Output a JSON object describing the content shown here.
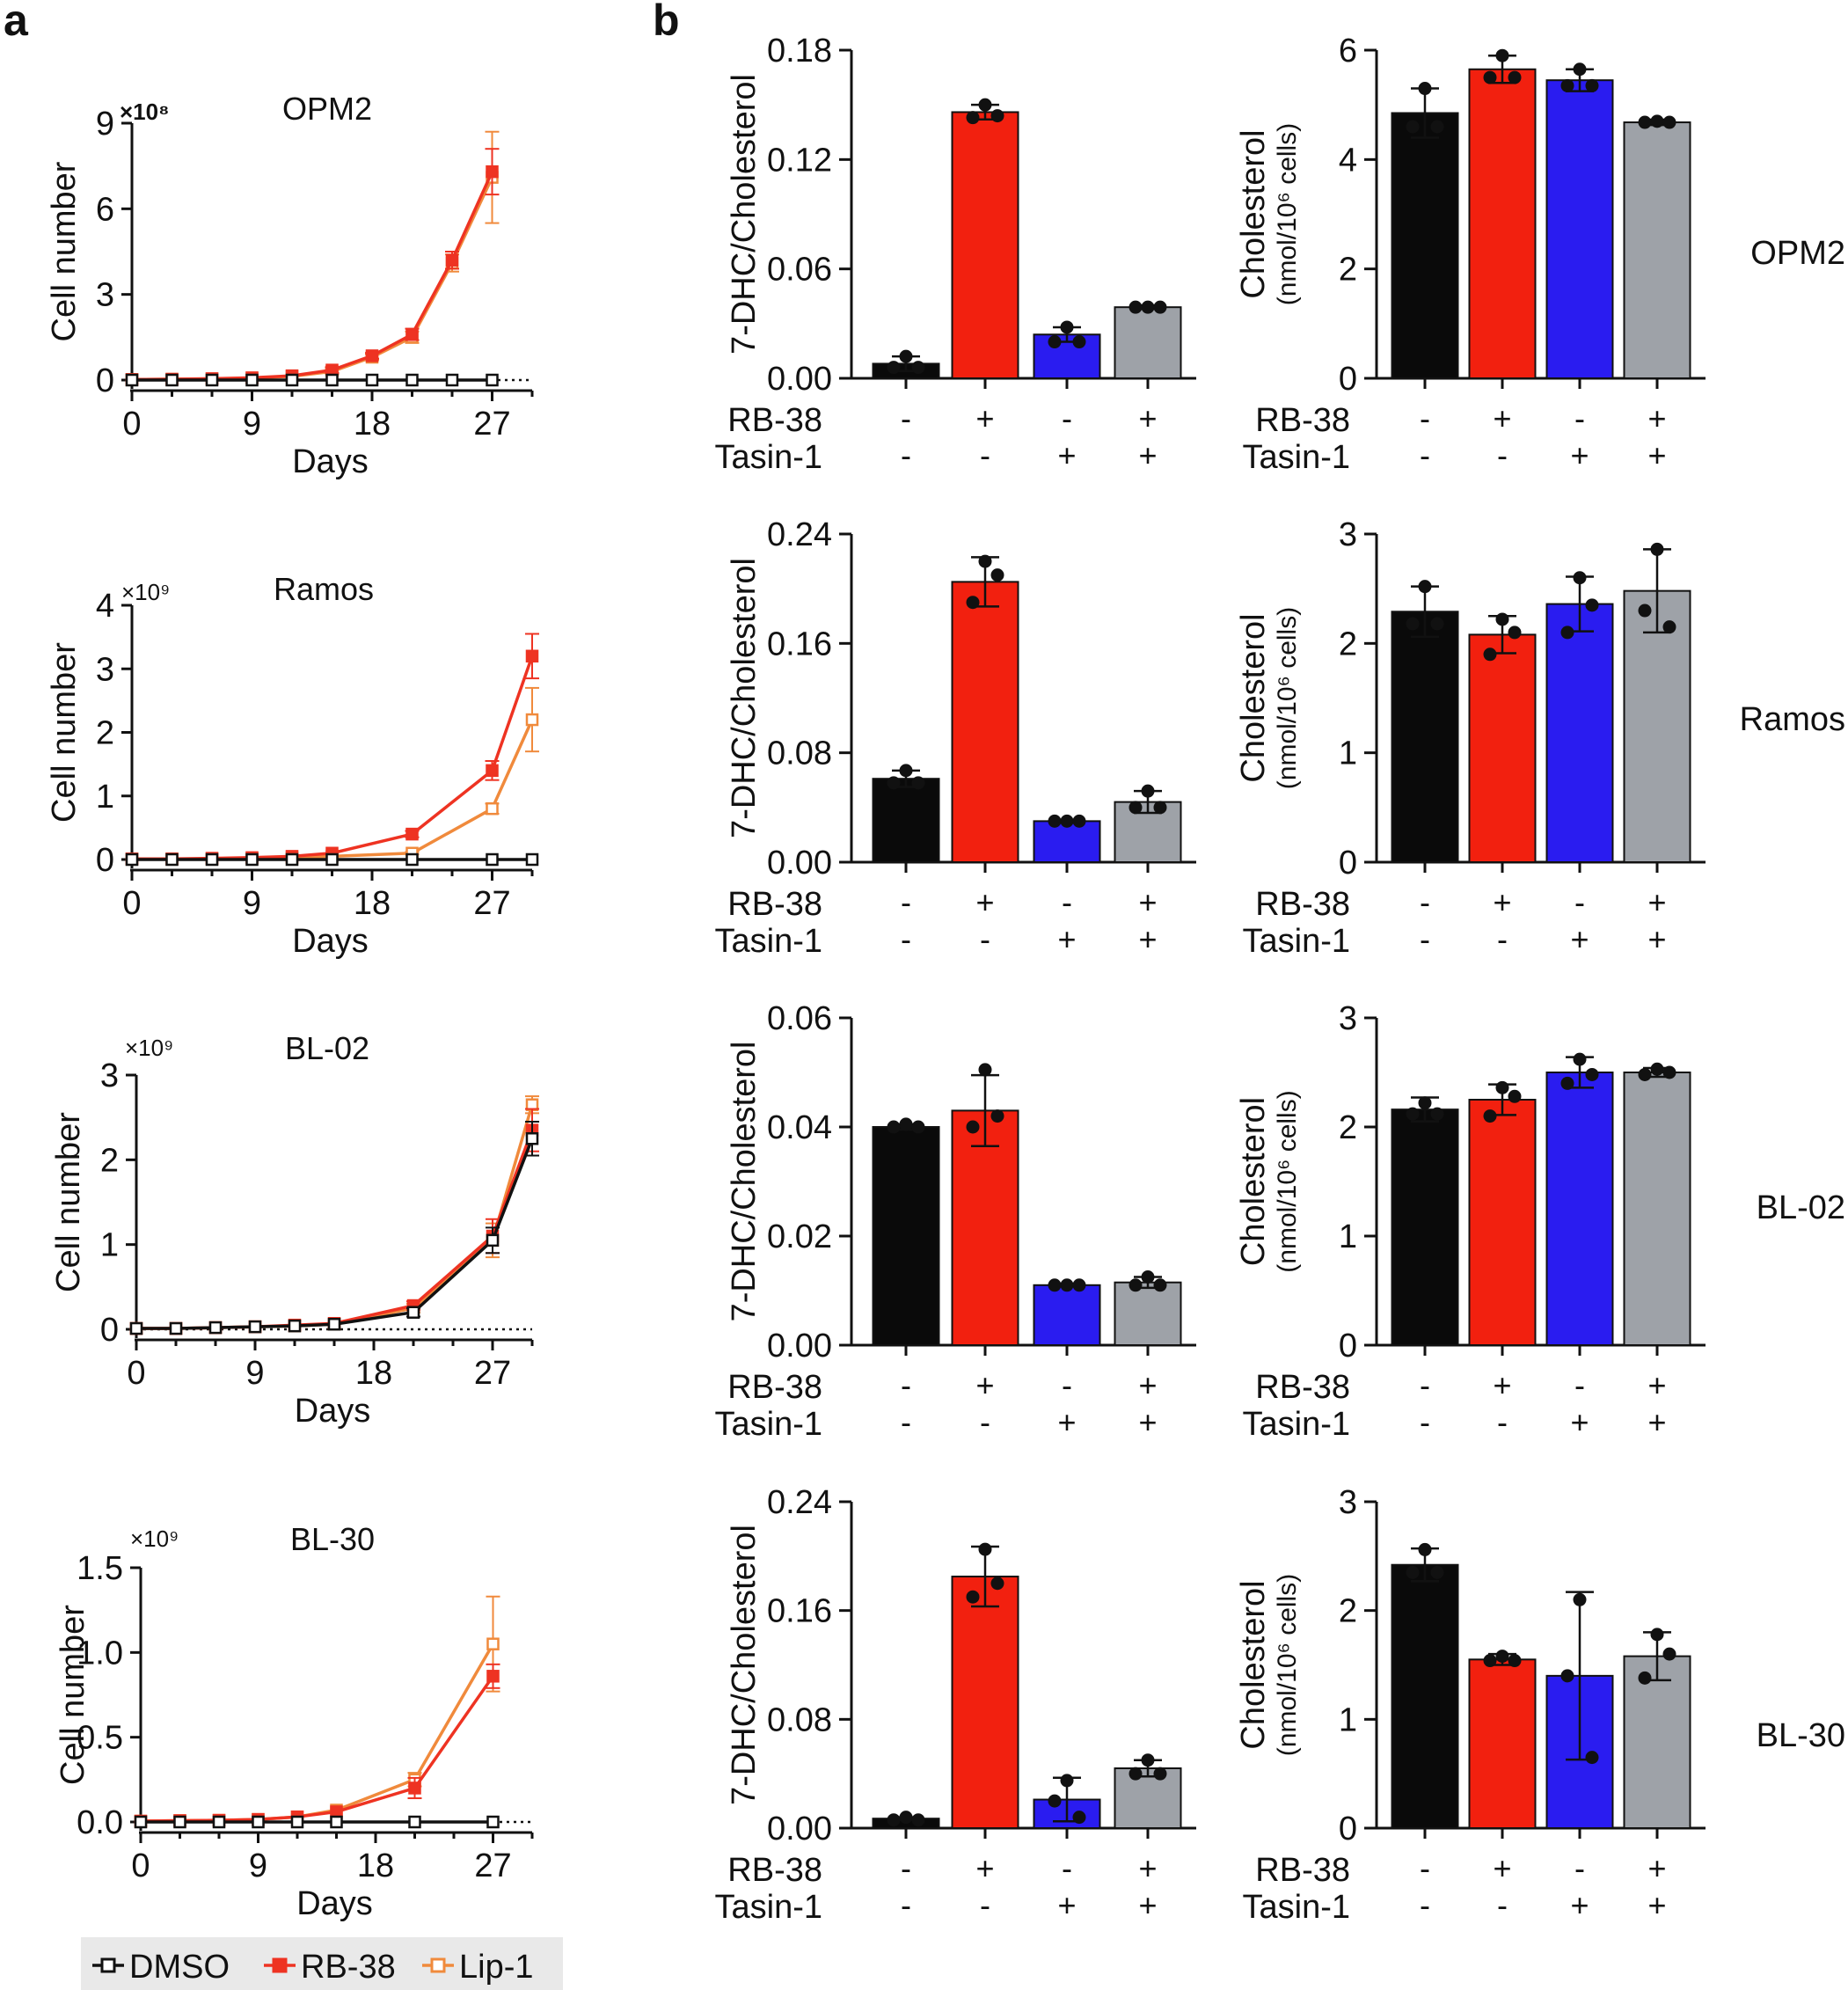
{
  "panel_labels": {
    "a": "a",
    "b": "b"
  },
  "colors": {
    "dmso": "#111111",
    "rb38": "#ee3322",
    "lip1": "#f08a3c",
    "bar_black": "#0a0a0a",
    "bar_red": "#f2200f",
    "bar_blue": "#2a1cf0",
    "bar_gray": "#9ea2a8"
  },
  "treatment_labels": {
    "rb38": "RB-38",
    "tasin1": "Tasin-1"
  },
  "treatment_signs": {
    "rb38": [
      "-",
      "+",
      "-",
      "+"
    ],
    "tasin1": [
      "-",
      "-",
      "+",
      "+"
    ]
  },
  "legend": {
    "items": [
      "DMSO",
      "RB-38",
      "Lip-1"
    ]
  },
  "chart_data": [
    {
      "type": "line",
      "title": "OPM2",
      "exponent": "×10⁸",
      "xlabel": "Days",
      "ylabel": "Cell number",
      "xticks": [
        0,
        9,
        18,
        27
      ],
      "xlim": [
        0,
        30
      ],
      "yticks": [
        0,
        3,
        6,
        9
      ],
      "ylim": [
        0,
        9
      ],
      "yticklabels": [
        "0",
        "3",
        "6",
        "9"
      ],
      "series": [
        {
          "name": "DMSO",
          "x": [
            0,
            3,
            6,
            9,
            12,
            15,
            18,
            21,
            24,
            27
          ],
          "values": [
            0,
            0,
            0,
            0,
            0,
            0,
            0,
            0,
            0,
            0
          ],
          "err": [
            0,
            0,
            0,
            0,
            0,
            0,
            0,
            0,
            0,
            0
          ]
        },
        {
          "name": "RB-38",
          "x": [
            0,
            3,
            6,
            9,
            12,
            15,
            18,
            21,
            24,
            27
          ],
          "values": [
            0.02,
            0.03,
            0.05,
            0.08,
            0.15,
            0.35,
            0.85,
            1.6,
            4.2,
            7.3
          ],
          "err": [
            0,
            0,
            0,
            0,
            0,
            0.1,
            0.1,
            0.2,
            0.3,
            0.8
          ]
        },
        {
          "name": "Lip-1",
          "x": [
            0,
            3,
            6,
            9,
            12,
            15,
            18,
            21,
            24,
            27
          ],
          "values": [
            0.02,
            0.03,
            0.04,
            0.07,
            0.13,
            0.3,
            0.8,
            1.5,
            4.1,
            7.1
          ],
          "err": [
            0,
            0,
            0,
            0,
            0,
            0.1,
            0.1,
            0.2,
            0.3,
            1.6
          ]
        }
      ]
    },
    {
      "type": "line",
      "title": "Ramos",
      "exponent": "×10⁹",
      "xlabel": "Days",
      "ylabel": "Cell number",
      "xticks": [
        0,
        9,
        18,
        27
      ],
      "xlim": [
        0,
        30
      ],
      "yticks": [
        0,
        1,
        2,
        3,
        4
      ],
      "ylim": [
        0,
        4
      ],
      "yticklabels": [
        "0",
        "1",
        "2",
        "3",
        "4"
      ],
      "series": [
        {
          "name": "DMSO",
          "x": [
            0,
            3,
            6,
            9,
            12,
            15,
            21,
            27,
            30
          ],
          "values": [
            0,
            0,
            0,
            0,
            0,
            0,
            0,
            0,
            0
          ],
          "err": [
            0,
            0,
            0,
            0,
            0,
            0,
            0,
            0,
            0
          ]
        },
        {
          "name": "RB-38",
          "x": [
            0,
            3,
            6,
            9,
            12,
            15,
            21,
            27,
            30
          ],
          "values": [
            0.01,
            0.01,
            0.02,
            0.03,
            0.05,
            0.1,
            0.4,
            1.4,
            3.2
          ],
          "err": [
            0,
            0,
            0,
            0,
            0,
            0,
            0.05,
            0.15,
            0.35
          ]
        },
        {
          "name": "Lip-1",
          "x": [
            0,
            3,
            6,
            9,
            12,
            15,
            21,
            27,
            30
          ],
          "values": [
            0.01,
            0.01,
            0.01,
            0.02,
            0.03,
            0.05,
            0.1,
            0.8,
            2.2
          ],
          "err": [
            0,
            0,
            0,
            0,
            0,
            0,
            0.02,
            0.08,
            0.5
          ]
        }
      ]
    },
    {
      "type": "line",
      "title": "BL-02",
      "exponent": "×10⁹",
      "xlabel": "Days",
      "ylabel": "Cell number",
      "xticks": [
        0,
        9,
        18,
        27
      ],
      "xlim": [
        0,
        30
      ],
      "yticks": [
        0,
        1,
        2,
        3
      ],
      "ylim": [
        0,
        3
      ],
      "yticklabels": [
        "0",
        "1",
        "2",
        "3"
      ],
      "series": [
        {
          "name": "DMSO",
          "x": [
            0,
            3,
            6,
            9,
            12,
            15,
            21,
            27,
            30
          ],
          "values": [
            0.01,
            0.01,
            0.02,
            0.03,
            0.04,
            0.06,
            0.2,
            1.05,
            2.25
          ],
          "err": [
            0,
            0,
            0,
            0,
            0,
            0,
            0.05,
            0.15,
            0.2
          ]
        },
        {
          "name": "RB-38",
          "x": [
            0,
            3,
            6,
            9,
            12,
            15,
            21,
            27,
            30
          ],
          "values": [
            0.01,
            0.01,
            0.02,
            0.03,
            0.05,
            0.07,
            0.28,
            1.1,
            2.35
          ],
          "err": [
            0,
            0,
            0,
            0,
            0,
            0,
            0.05,
            0.2,
            0.25
          ]
        },
        {
          "name": "Lip-1",
          "x": [
            0,
            3,
            6,
            9,
            12,
            15,
            21,
            27,
            30
          ],
          "values": [
            0.01,
            0.01,
            0.02,
            0.03,
            0.04,
            0.06,
            0.25,
            1.05,
            2.65
          ],
          "err": [
            0,
            0,
            0,
            0,
            0,
            0,
            0.05,
            0.2,
            0.1
          ]
        }
      ]
    },
    {
      "type": "line",
      "title": "BL-30",
      "exponent": "×10⁹",
      "xlabel": "Days",
      "ylabel": "Cell number",
      "xticks": [
        0,
        9,
        18,
        27
      ],
      "xlim": [
        0,
        30
      ],
      "yticks": [
        0,
        0.5,
        1.0,
        1.5
      ],
      "ylim": [
        0,
        1.5
      ],
      "yticklabels": [
        "0.0",
        "0.5",
        "1.0",
        "1.5"
      ],
      "series": [
        {
          "name": "DMSO",
          "x": [
            0,
            3,
            6,
            9,
            12,
            15,
            21,
            27
          ],
          "values": [
            0,
            0,
            0,
            0,
            0,
            0,
            0,
            0
          ],
          "err": [
            0,
            0,
            0,
            0,
            0,
            0,
            0,
            0
          ]
        },
        {
          "name": "RB-38",
          "x": [
            0,
            3,
            6,
            9,
            12,
            15,
            21,
            27
          ],
          "values": [
            0.005,
            0.008,
            0.01,
            0.015,
            0.03,
            0.06,
            0.2,
            0.86
          ],
          "err": [
            0,
            0,
            0,
            0,
            0,
            0,
            0.06,
            0.07
          ]
        },
        {
          "name": "Lip-1",
          "x": [
            0,
            3,
            6,
            9,
            12,
            15,
            21,
            27
          ],
          "values": [
            0.005,
            0.008,
            0.01,
            0.015,
            0.03,
            0.07,
            0.25,
            1.05
          ],
          "err": [
            0,
            0,
            0,
            0,
            0,
            0,
            0.04,
            0.28
          ]
        }
      ]
    },
    {
      "type": "bar",
      "title": "",
      "row_label": "",
      "ylabel": "7-DHC/Cholesterol",
      "ylabel2": "",
      "categories": [
        "DMSO",
        "RB-38",
        "Tasin-1",
        "RB-38 + Tasin-1"
      ],
      "ylim": [
        0,
        0.18
      ],
      "yticks": [
        0,
        0.06,
        0.12,
        0.18
      ],
      "yticklabels": [
        "0.00",
        "0.06",
        "0.12",
        "0.18"
      ],
      "values": [
        0.008,
        0.146,
        0.024,
        0.039
      ],
      "err": [
        0.004,
        0.004,
        0.004,
        0.001
      ],
      "points": [
        [
          0.012,
          0.006,
          0.006
        ],
        [
          0.15,
          0.143,
          0.144
        ],
        [
          0.028,
          0.02,
          0.02
        ],
        [
          0.039,
          0.039,
          0.039
        ]
      ]
    },
    {
      "type": "bar",
      "title": "",
      "row_label": "OPM2",
      "ylabel": "Cholesterol",
      "ylabel2": "(nmol/10⁶ cells)",
      "categories": [
        "DMSO",
        "RB-38",
        "Tasin-1",
        "RB-38 + Tasin-1"
      ],
      "ylim": [
        0,
        6
      ],
      "yticks": [
        0,
        2,
        4,
        6
      ],
      "yticklabels": [
        "0",
        "2",
        "4",
        "6"
      ],
      "values": [
        4.85,
        5.65,
        5.45,
        4.68
      ],
      "err": [
        0.45,
        0.25,
        0.2,
        0.05
      ],
      "points": [
        [
          5.3,
          4.6,
          4.6
        ],
        [
          5.9,
          5.5,
          5.5
        ],
        [
          5.65,
          5.35,
          5.35
        ],
        [
          4.7,
          4.68,
          4.68
        ]
      ]
    },
    {
      "type": "bar",
      "title": "",
      "row_label": "",
      "ylabel": "7-DHC/Cholesterol",
      "ylabel2": "",
      "categories": [
        "DMSO",
        "RB-38",
        "Tasin-1",
        "RB-38 + Tasin-1"
      ],
      "ylim": [
        0,
        0.24
      ],
      "yticks": [
        0,
        0.08,
        0.16,
        0.24
      ],
      "yticklabels": [
        "0.00",
        "0.08",
        "0.16",
        "0.24"
      ],
      "values": [
        0.061,
        0.205,
        0.03,
        0.044
      ],
      "err": [
        0.006,
        0.018,
        0.001,
        0.008
      ],
      "points": [
        [
          0.067,
          0.058,
          0.058
        ],
        [
          0.22,
          0.19,
          0.21
        ],
        [
          0.03,
          0.03,
          0.03
        ],
        [
          0.052,
          0.04,
          0.04
        ]
      ]
    },
    {
      "type": "bar",
      "title": "",
      "row_label": "Ramos",
      "ylabel": "Cholesterol",
      "ylabel2": "(nmol/10⁶ cells)",
      "categories": [
        "DMSO",
        "RB-38",
        "Tasin-1",
        "RB-38 + Tasin-1"
      ],
      "ylim": [
        0,
        3
      ],
      "yticks": [
        0,
        1,
        2,
        3
      ],
      "yticklabels": [
        "0",
        "1",
        "2",
        "3"
      ],
      "values": [
        2.29,
        2.08,
        2.36,
        2.48
      ],
      "err": [
        0.23,
        0.17,
        0.25,
        0.38
      ],
      "points": [
        [
          2.52,
          2.18,
          2.18
        ],
        [
          2.22,
          1.9,
          2.1
        ],
        [
          2.6,
          2.1,
          2.35
        ],
        [
          2.86,
          2.3,
          2.15
        ]
      ]
    },
    {
      "type": "bar",
      "title": "",
      "row_label": "",
      "ylabel": "7-DHC/Cholesterol",
      "ylabel2": "",
      "categories": [
        "DMSO",
        "RB-38",
        "Tasin-1",
        "RB-38 + Tasin-1"
      ],
      "ylim": [
        0,
        0.06
      ],
      "yticks": [
        0,
        0.02,
        0.04,
        0.06
      ],
      "yticklabels": [
        "0.00",
        "0.02",
        "0.04",
        "0.06"
      ],
      "values": [
        0.04,
        0.043,
        0.011,
        0.0115
      ],
      "err": [
        0.0005,
        0.0065,
        0.0002,
        0.001
      ],
      "points": [
        [
          0.0405,
          0.04,
          0.04
        ],
        [
          0.0505,
          0.04,
          0.042
        ],
        [
          0.011,
          0.011,
          0.011
        ],
        [
          0.0125,
          0.011,
          0.011
        ]
      ]
    },
    {
      "type": "bar",
      "title": "",
      "row_label": "BL-02",
      "ylabel": "Cholesterol",
      "ylabel2": "(nmol/10⁶ cells)",
      "categories": [
        "DMSO",
        "RB-38",
        "Tasin-1",
        "RB-38 + Tasin-1"
      ],
      "ylim": [
        0,
        3
      ],
      "yticks": [
        0,
        1,
        2,
        3
      ],
      "yticklabels": [
        "0",
        "1",
        "2",
        "3"
      ],
      "values": [
        2.16,
        2.25,
        2.5,
        2.5
      ],
      "err": [
        0.11,
        0.14,
        0.14,
        0.04
      ],
      "points": [
        [
          2.22,
          2.12,
          2.12
        ],
        [
          2.36,
          2.1,
          2.28
        ],
        [
          2.62,
          2.4,
          2.48
        ],
        [
          2.53,
          2.48,
          2.5
        ]
      ]
    },
    {
      "type": "bar",
      "title": "",
      "row_label": "",
      "ylabel": "7-DHC/Cholesterol",
      "ylabel2": "",
      "categories": [
        "DMSO",
        "RB-38",
        "Tasin-1",
        "RB-38 + Tasin-1"
      ],
      "ylim": [
        0,
        0.24
      ],
      "yticks": [
        0,
        0.08,
        0.16,
        0.24
      ],
      "yticklabels": [
        "0.00",
        "0.08",
        "0.16",
        "0.24"
      ],
      "values": [
        0.007,
        0.185,
        0.021,
        0.044
      ],
      "err": [
        0.001,
        0.022,
        0.016,
        0.006
      ],
      "points": [
        [
          0.008,
          0.006,
          0.006
        ],
        [
          0.205,
          0.17,
          0.18
        ],
        [
          0.035,
          0.02,
          0.008
        ],
        [
          0.05,
          0.04,
          0.04
        ]
      ]
    },
    {
      "type": "bar",
      "title": "",
      "row_label": "BL-30",
      "ylabel": "Cholesterol",
      "ylabel2": "(nmol/10⁶ cells)",
      "categories": [
        "DMSO",
        "RB-38",
        "Tasin-1",
        "RB-38 + Tasin-1"
      ],
      "ylim": [
        0,
        3
      ],
      "yticks": [
        0,
        1,
        2,
        3
      ],
      "yticklabels": [
        "0",
        "1",
        "2",
        "3"
      ],
      "values": [
        2.42,
        1.55,
        1.4,
        1.58
      ],
      "err": [
        0.15,
        0.05,
        0.77,
        0.22
      ],
      "points": [
        [
          2.56,
          2.35,
          2.35
        ],
        [
          1.58,
          1.54,
          1.54
        ],
        [
          2.1,
          1.4,
          0.65
        ],
        [
          1.78,
          1.38,
          1.6
        ]
      ]
    }
  ]
}
